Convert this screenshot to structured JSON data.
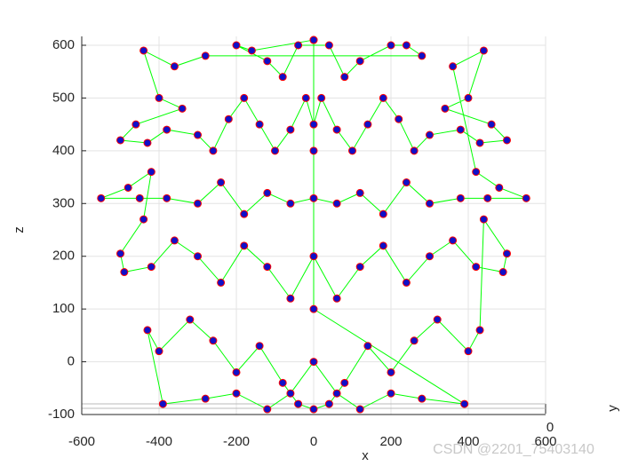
{
  "chart_data": {
    "type": "line",
    "xlabel": "x",
    "zlabel": "z",
    "ylabel": "y",
    "yticks": [
      0
    ],
    "xlim": [
      -600,
      600
    ],
    "xticks": [
      -600,
      -400,
      -200,
      0,
      200,
      400,
      600
    ],
    "zlim": [
      -100,
      600
    ],
    "zticks": [
      -100,
      0,
      100,
      200,
      300,
      400,
      500,
      600
    ],
    "grid": true,
    "line_color": "#00ff00",
    "marker_color": "#1010c8",
    "marker_edge_color": "#ff0000",
    "watermark": "CSDN @2201_75403140",
    "x": [
      0,
      -160,
      -200,
      -120,
      -80,
      -40,
      40,
      80,
      120,
      200,
      240,
      280,
      -280,
      -360,
      -440,
      -400,
      -340,
      -460,
      -500,
      -430,
      -380,
      -300,
      -260,
      -220,
      -180,
      -140,
      -100,
      -60,
      -20,
      0,
      20,
      60,
      100,
      140,
      180,
      220,
      260,
      300,
      380,
      430,
      500,
      460,
      340,
      400,
      440,
      360,
      420,
      480,
      550,
      450,
      380,
      300,
      240,
      180,
      120,
      60,
      0,
      -60,
      -120,
      -180,
      -240,
      -300,
      -380,
      -450,
      -550,
      -480,
      -420,
      -440,
      -500,
      -490,
      -420,
      -360,
      -300,
      -240,
      -180,
      -120,
      -60,
      0,
      60,
      120,
      180,
      240,
      300,
      360,
      420,
      490,
      500,
      440,
      430,
      400,
      320,
      260,
      200,
      140,
      80,
      40,
      0,
      -40,
      -80,
      -140,
      -200,
      -260,
      -320,
      -400,
      -430,
      -390,
      -280,
      -200,
      -120,
      -60,
      0,
      60,
      120,
      200,
      280,
      390,
      0,
      0,
      0
    ],
    "z": [
      610,
      590,
      600,
      570,
      540,
      600,
      600,
      540,
      570,
      600,
      600,
      580,
      580,
      560,
      590,
      500,
      480,
      450,
      420,
      415,
      440,
      430,
      400,
      460,
      500,
      450,
      400,
      440,
      500,
      450,
      500,
      440,
      400,
      450,
      500,
      460,
      400,
      430,
      440,
      415,
      420,
      450,
      480,
      500,
      590,
      560,
      360,
      330,
      310,
      310,
      310,
      300,
      340,
      280,
      320,
      300,
      310,
      300,
      320,
      280,
      340,
      300,
      310,
      310,
      310,
      330,
      360,
      270,
      205,
      170,
      180,
      230,
      200,
      150,
      220,
      180,
      120,
      200,
      120,
      180,
      220,
      150,
      200,
      230,
      180,
      170,
      205,
      270,
      60,
      20,
      80,
      40,
      -20,
      30,
      -40,
      -80,
      -90,
      -80,
      -40,
      30,
      -20,
      40,
      80,
      20,
      60,
      -80,
      -70,
      -60,
      -90,
      -60,
      0,
      -60,
      -90,
      -60,
      -70,
      -80,
      100,
      400,
      610
    ]
  }
}
